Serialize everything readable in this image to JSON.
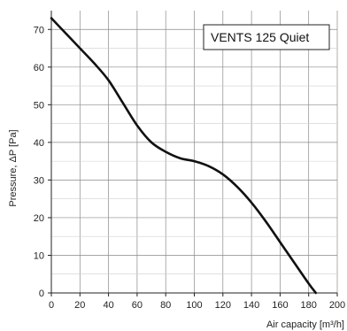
{
  "chart_data": {
    "type": "line",
    "title": "",
    "xlabel": "Air capacity [m³/h]",
    "ylabel": "Pressure, ΔP [Pa]",
    "xlim": [
      0,
      200
    ],
    "ylim": [
      0,
      75
    ],
    "xticks": [
      0,
      20,
      40,
      60,
      80,
      100,
      120,
      140,
      160,
      180,
      200
    ],
    "yticks": [
      0,
      10,
      20,
      30,
      40,
      50,
      60,
      70
    ],
    "grid": true,
    "legend": "top-right",
    "series": [
      {
        "name": "VENTS 125 Quiet",
        "color": "#111111",
        "x": [
          0,
          10,
          20,
          30,
          40,
          50,
          60,
          70,
          80,
          90,
          100,
          110,
          120,
          130,
          140,
          150,
          160,
          170,
          180,
          185
        ],
        "y": [
          73,
          69,
          65,
          61,
          56.5,
          50.5,
          44.5,
          40,
          37.5,
          35.8,
          35,
          33.7,
          31.5,
          28.2,
          24,
          19,
          13.5,
          8,
          2.5,
          0
        ]
      }
    ]
  }
}
